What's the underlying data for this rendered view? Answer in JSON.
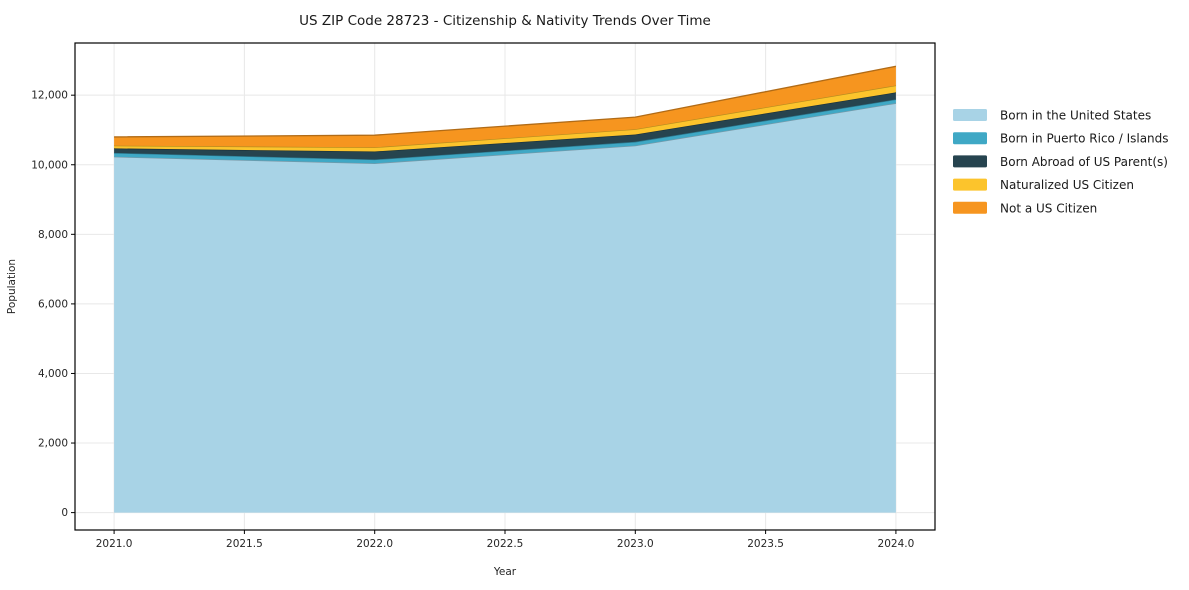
{
  "chart_data": {
    "type": "area",
    "stacked": true,
    "title": "US ZIP Code 28723 - Citizenship & Nativity Trends Over Time",
    "xlabel": "Year",
    "ylabel": "Population",
    "x": [
      2021,
      2022,
      2023,
      2024
    ],
    "series": [
      {
        "name": "Born in the United States",
        "color": "#a8d3e6",
        "values": [
          10230,
          10040,
          10550,
          11770
        ]
      },
      {
        "name": "Born in Puerto Rico / Islands",
        "color": "#3fa8c5",
        "values": [
          110,
          110,
          110,
          110
        ]
      },
      {
        "name": "Born Abroad of US Parent(s)",
        "color": "#26444f",
        "values": [
          130,
          230,
          210,
          200
        ]
      },
      {
        "name": "Naturalized US Citizen",
        "color": "#fcc42c",
        "values": [
          80,
          120,
          150,
          200
        ]
      },
      {
        "name": "Not a US Citizen",
        "color": "#f6951f",
        "values": [
          250,
          350,
          350,
          550
        ]
      }
    ],
    "totals": [
      10800,
      10850,
      11370,
      12830
    ],
    "xticks": [
      {
        "v": 2021.0,
        "label": "2021.0"
      },
      {
        "v": 2021.5,
        "label": "2021.5"
      },
      {
        "v": 2022.0,
        "label": "2022.0"
      },
      {
        "v": 2022.5,
        "label": "2022.5"
      },
      {
        "v": 2023.0,
        "label": "2023.0"
      },
      {
        "v": 2023.5,
        "label": "2023.5"
      },
      {
        "v": 2024.0,
        "label": "2024.0"
      }
    ],
    "yticks": [
      {
        "v": 0,
        "label": "0"
      },
      {
        "v": 2000,
        "label": "2,000"
      },
      {
        "v": 4000,
        "label": "4,000"
      },
      {
        "v": 6000,
        "label": "6,000"
      },
      {
        "v": 8000,
        "label": "8,000"
      },
      {
        "v": 10000,
        "label": "10,000"
      },
      {
        "v": 12000,
        "label": "12,000"
      }
    ],
    "xlim": [
      2020.85,
      2024.15
    ],
    "ylim": [
      -500,
      13500
    ],
    "grid": true,
    "legend_position": "right",
    "grid_color": "#e8e8e8",
    "spine_color": "#000000"
  }
}
